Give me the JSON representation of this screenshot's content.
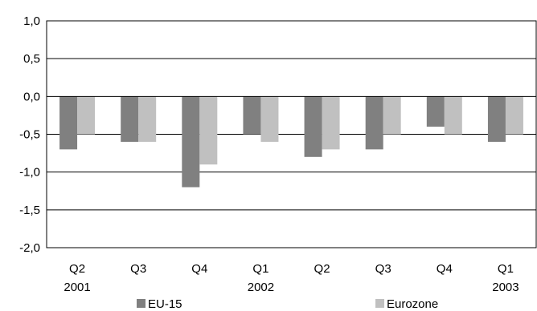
{
  "chart_data": {
    "type": "bar",
    "categories": [
      [
        "Q2",
        "2001"
      ],
      [
        "Q3",
        ""
      ],
      [
        "Q4",
        ""
      ],
      [
        "Q1",
        "2002"
      ],
      [
        "Q2",
        ""
      ],
      [
        "Q3",
        ""
      ],
      [
        "Q4",
        ""
      ],
      [
        "Q1",
        "2003"
      ]
    ],
    "series": [
      {
        "name": "EU-15",
        "color": "#808080",
        "values": [
          -0.7,
          -0.6,
          -1.2,
          -0.5,
          -0.8,
          -0.7,
          -0.4,
          -0.6
        ]
      },
      {
        "name": "Eurozone",
        "color": "#c0c0c0",
        "values": [
          -0.5,
          -0.6,
          -0.9,
          -0.6,
          -0.7,
          -0.5,
          -0.5,
          -0.5
        ]
      }
    ],
    "ylim": [
      -2.0,
      1.0
    ],
    "yticks": [
      1.0,
      0.5,
      0.0,
      -0.5,
      -1.0,
      -1.5,
      -2.0
    ],
    "ytick_labels": [
      "1,0",
      "0,5",
      "0,0",
      "-0,5",
      "-1,0",
      "-1,5",
      "-2,0"
    ],
    "grid": true,
    "legend": "bottom"
  }
}
